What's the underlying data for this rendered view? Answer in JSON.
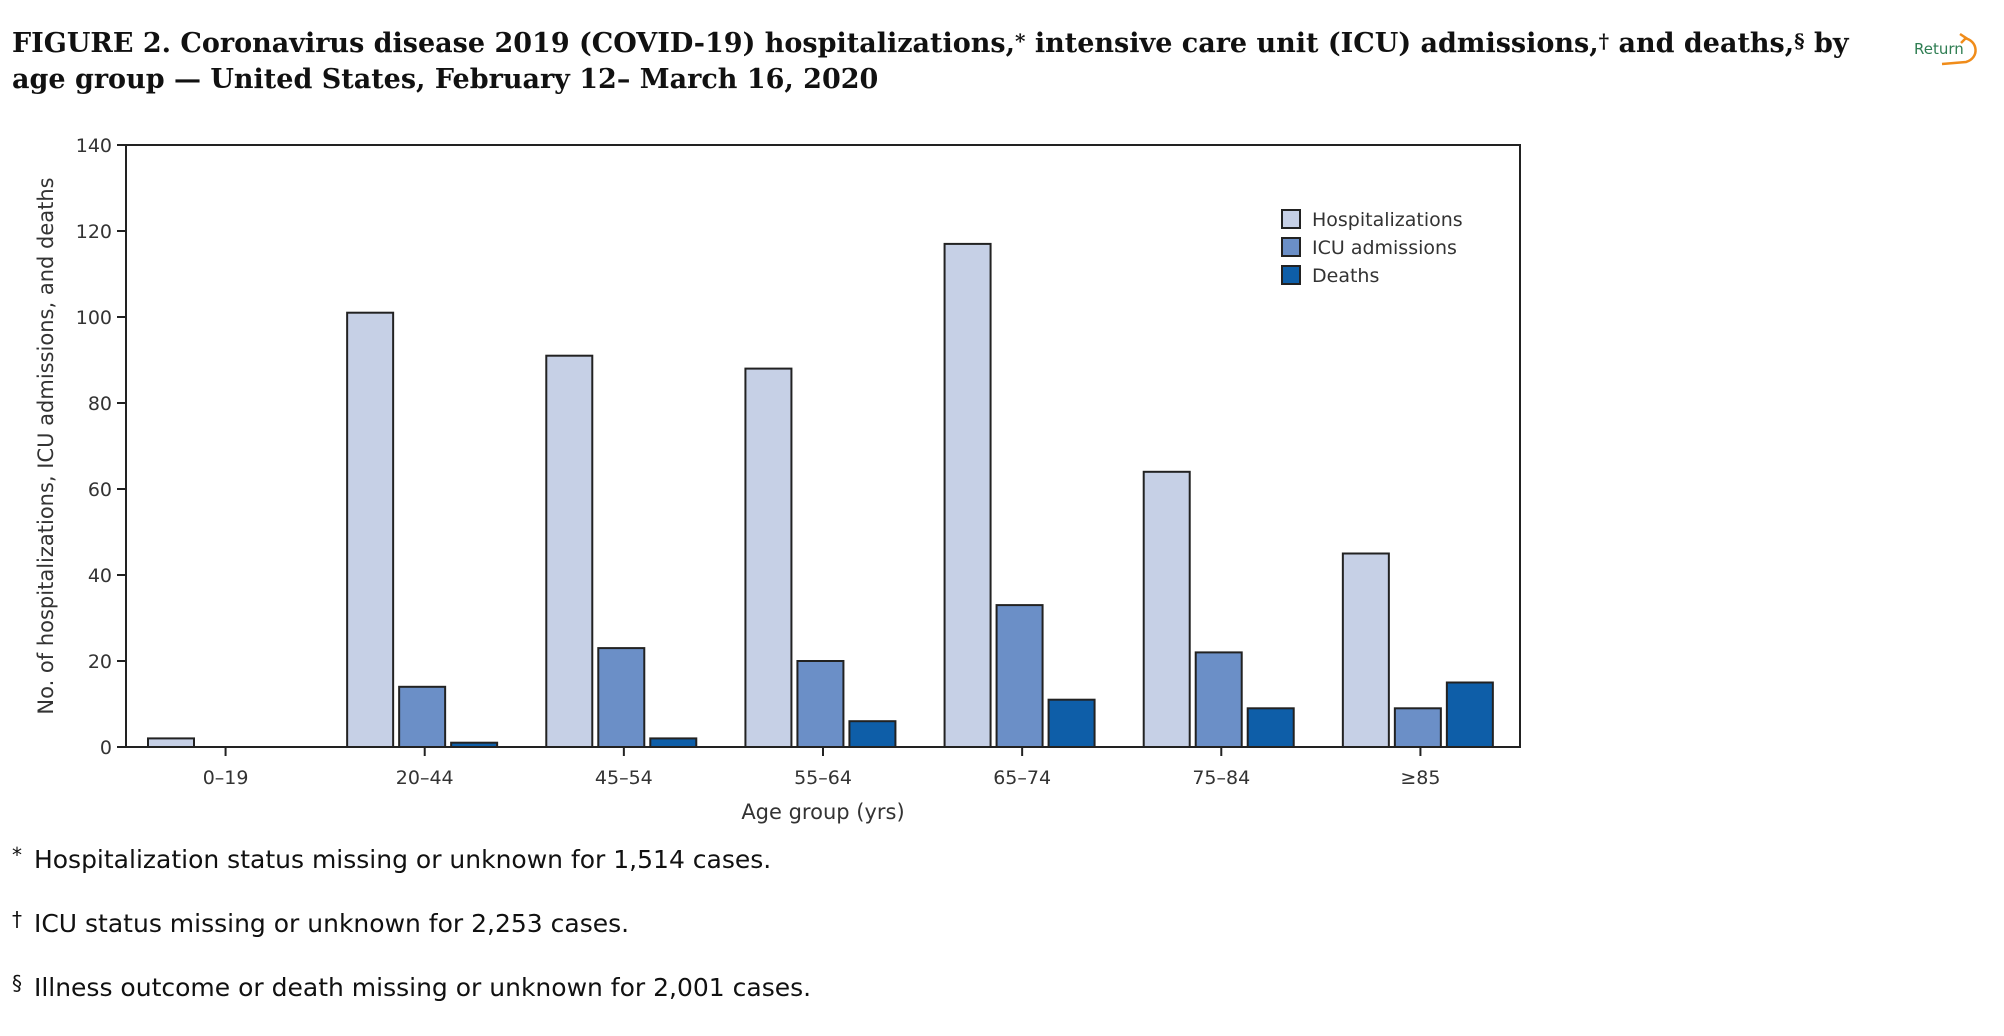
{
  "title": {
    "figure_label": "FIGURE 2",
    "text_1": ". Coronavirus disease 2019 (COVID-19) hospitalizations,",
    "mark_1": "*",
    "text_2": " intensive care unit (ICU) admissions,",
    "mark_2": "†",
    "text_3": " and deaths,",
    "mark_3": "§",
    "text_4": " by age group — United States, February 12– March 16, 2020"
  },
  "return_link": {
    "label": "Return"
  },
  "chart_data": {
    "type": "bar",
    "categories": [
      "0–19",
      "20–44",
      "45–54",
      "55–64",
      "65–74",
      "75–84",
      "≥85"
    ],
    "series": [
      {
        "name": "Hospitalizations",
        "color": "#c6d0e6",
        "values": [
          2,
          101,
          91,
          88,
          117,
          64,
          45
        ]
      },
      {
        "name": "ICU admissions",
        "color": "#6b8fc7",
        "values": [
          0,
          14,
          23,
          20,
          33,
          22,
          9
        ]
      },
      {
        "name": "Deaths",
        "color": "#0e5ea8",
        "values": [
          0,
          1,
          2,
          6,
          11,
          9,
          15
        ]
      }
    ],
    "xlabel": "Age group (yrs)",
    "ylabel": "No. of hospitalizations, ICU admissions, and deaths",
    "ylim": [
      0,
      140
    ],
    "yticks": [
      "0",
      "20",
      "40",
      "60",
      "80",
      "100",
      "120",
      "140"
    ],
    "grid": false,
    "legend_position": "top-right"
  },
  "footnotes": [
    {
      "mark": "*",
      "text": " Hospitalization status missing or unknown for 1,514 cases."
    },
    {
      "mark": "†",
      "text": " ICU status missing or unknown for 2,253 cases."
    },
    {
      "mark": "§",
      "text": " Illness outcome or death missing or unknown for 2,001 cases."
    }
  ]
}
